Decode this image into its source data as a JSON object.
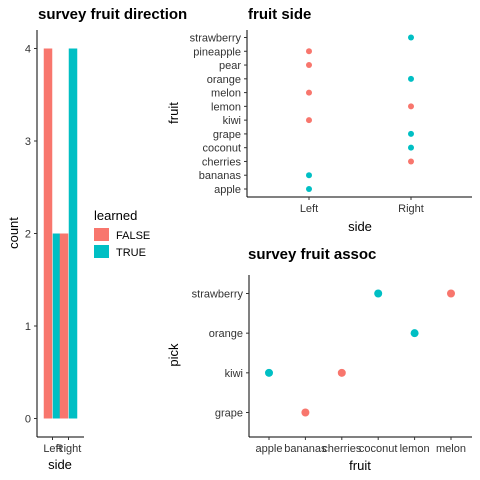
{
  "colors": {
    "FALSE": "#F8766D",
    "TRUE": "#00BFC4"
  },
  "chart_data": [
    {
      "type": "bar",
      "title": "survey fruit direction",
      "xlabel": "side",
      "ylabel": "count",
      "categories": [
        "Left",
        "Right"
      ],
      "series": [
        {
          "name": "FALSE",
          "values": [
            4,
            2
          ]
        },
        {
          "name": "TRUE",
          "values": [
            2,
            4
          ]
        }
      ],
      "ylim": [
        0,
        4
      ],
      "yticks": [
        "0",
        "1",
        "2",
        "3",
        "4"
      ],
      "legend": {
        "title": "learned",
        "entries": [
          "FALSE",
          "TRUE"
        ],
        "placement": "right"
      },
      "grid": false
    },
    {
      "type": "scatter",
      "title": "fruit side",
      "xlabel": "side",
      "ylabel": "fruit",
      "x_categories": [
        "Left",
        "Right"
      ],
      "y_categories": [
        "apple",
        "bananas",
        "cherries",
        "coconut",
        "grape",
        "kiwi",
        "lemon",
        "melon",
        "orange",
        "pear",
        "pineapple",
        "strawberry"
      ],
      "points": [
        {
          "x": "Left",
          "y": "apple",
          "learned": "TRUE"
        },
        {
          "x": "Left",
          "y": "bananas",
          "learned": "TRUE"
        },
        {
          "x": "Right",
          "y": "cherries",
          "learned": "FALSE"
        },
        {
          "x": "Right",
          "y": "coconut",
          "learned": "TRUE"
        },
        {
          "x": "Right",
          "y": "grape",
          "learned": "TRUE"
        },
        {
          "x": "Left",
          "y": "kiwi",
          "learned": "FALSE"
        },
        {
          "x": "Right",
          "y": "lemon",
          "learned": "FALSE"
        },
        {
          "x": "Left",
          "y": "melon",
          "learned": "FALSE"
        },
        {
          "x": "Right",
          "y": "orange",
          "learned": "TRUE"
        },
        {
          "x": "Left",
          "y": "pear",
          "learned": "FALSE"
        },
        {
          "x": "Left",
          "y": "pineapple",
          "learned": "FALSE"
        },
        {
          "x": "Right",
          "y": "strawberry",
          "learned": "TRUE"
        }
      ],
      "grid": false
    },
    {
      "type": "scatter",
      "title": "survey fruit assoc",
      "xlabel": "fruit",
      "ylabel": "pick",
      "x_categories": [
        "apple",
        "bananas",
        "cherries",
        "coconut",
        "lemon",
        "melon"
      ],
      "y_categories": [
        "grape",
        "kiwi",
        "orange",
        "strawberry"
      ],
      "points": [
        {
          "x": "apple",
          "y": "kiwi",
          "learned": "TRUE"
        },
        {
          "x": "bananas",
          "y": "grape",
          "learned": "FALSE"
        },
        {
          "x": "cherries",
          "y": "kiwi",
          "learned": "FALSE"
        },
        {
          "x": "coconut",
          "y": "strawberry",
          "learned": "TRUE"
        },
        {
          "x": "lemon",
          "y": "orange",
          "learned": "TRUE"
        },
        {
          "x": "melon",
          "y": "strawberry",
          "learned": "FALSE"
        }
      ],
      "grid": false
    }
  ]
}
